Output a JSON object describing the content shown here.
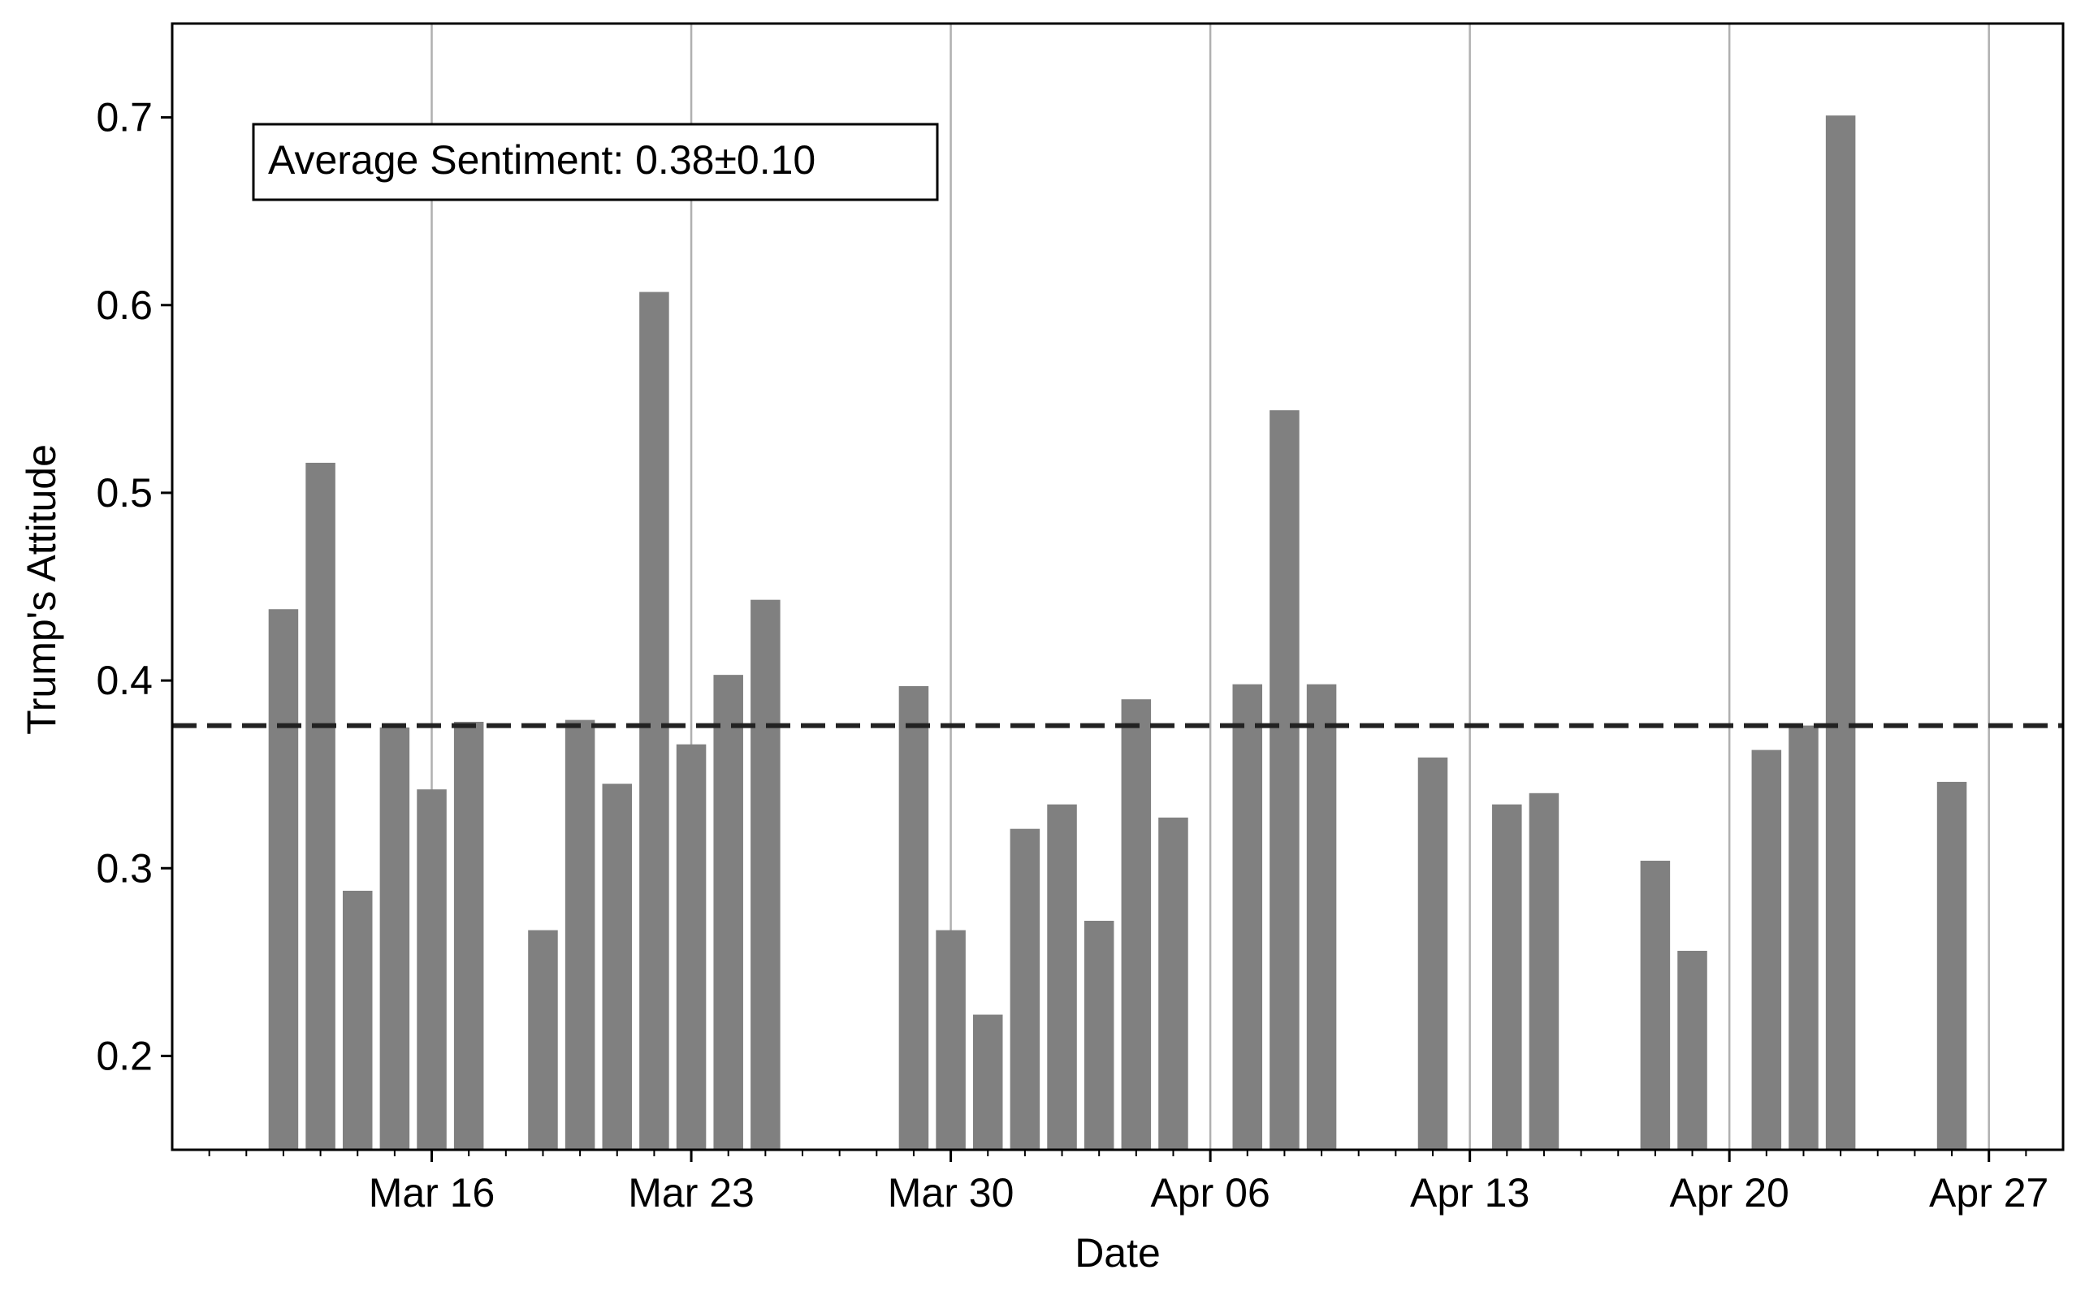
{
  "chart_data": {
    "type": "bar",
    "xlabel": "Date",
    "ylabel": "Trump's Attitude",
    "annotation": "Average Sentiment: 0.38±0.10",
    "mean_line": 0.376,
    "ylim": [
      0.15,
      0.75
    ],
    "y_ticks": [
      {
        "value": 0.2,
        "label": "0.2"
      },
      {
        "value": 0.3,
        "label": "0.3"
      },
      {
        "value": 0.4,
        "label": "0.4"
      },
      {
        "value": 0.5,
        "label": "0.5"
      },
      {
        "value": 0.6,
        "label": "0.6"
      },
      {
        "value": 0.7,
        "label": "0.7"
      }
    ],
    "x_range": [
      "2020-03-09",
      "2020-04-29"
    ],
    "x_ticks": [
      {
        "date": "2020-03-16",
        "label": "Mar 16"
      },
      {
        "date": "2020-03-23",
        "label": "Mar 23"
      },
      {
        "date": "2020-03-30",
        "label": "Mar 30"
      },
      {
        "date": "2020-04-06",
        "label": "Apr 06"
      },
      {
        "date": "2020-04-13",
        "label": "Apr 13"
      },
      {
        "date": "2020-04-20",
        "label": "Apr 20"
      },
      {
        "date": "2020-04-27",
        "label": "Apr 27"
      }
    ],
    "grid": "vertical major",
    "bar_color": "#808080",
    "mean_line_color": "#222222",
    "bars": [
      {
        "date": "2020-03-12",
        "value": 0.438
      },
      {
        "date": "2020-03-13",
        "value": 0.516
      },
      {
        "date": "2020-03-14",
        "value": 0.288
      },
      {
        "date": "2020-03-15",
        "value": 0.375
      },
      {
        "date": "2020-03-16",
        "value": 0.342
      },
      {
        "date": "2020-03-17",
        "value": 0.378
      },
      {
        "date": "2020-03-19",
        "value": 0.267
      },
      {
        "date": "2020-03-20",
        "value": 0.379
      },
      {
        "date": "2020-03-21",
        "value": 0.345
      },
      {
        "date": "2020-03-22",
        "value": 0.607
      },
      {
        "date": "2020-03-23",
        "value": 0.366
      },
      {
        "date": "2020-03-24",
        "value": 0.403
      },
      {
        "date": "2020-03-25",
        "value": 0.443
      },
      {
        "date": "2020-03-29",
        "value": 0.397
      },
      {
        "date": "2020-03-30",
        "value": 0.267
      },
      {
        "date": "2020-03-31",
        "value": 0.222
      },
      {
        "date": "2020-04-01",
        "value": 0.321
      },
      {
        "date": "2020-04-02",
        "value": 0.334
      },
      {
        "date": "2020-04-03",
        "value": 0.272
      },
      {
        "date": "2020-04-04",
        "value": 0.39
      },
      {
        "date": "2020-04-05",
        "value": 0.327
      },
      {
        "date": "2020-04-07",
        "value": 0.398
      },
      {
        "date": "2020-04-08",
        "value": 0.544
      },
      {
        "date": "2020-04-09",
        "value": 0.398
      },
      {
        "date": "2020-04-12",
        "value": 0.359
      },
      {
        "date": "2020-04-14",
        "value": 0.334
      },
      {
        "date": "2020-04-15",
        "value": 0.34
      },
      {
        "date": "2020-04-18",
        "value": 0.304
      },
      {
        "date": "2020-04-19",
        "value": 0.256
      },
      {
        "date": "2020-04-21",
        "value": 0.363
      },
      {
        "date": "2020-04-22",
        "value": 0.376
      },
      {
        "date": "2020-04-23",
        "value": 0.701
      },
      {
        "date": "2020-04-26",
        "value": 0.346
      }
    ]
  }
}
